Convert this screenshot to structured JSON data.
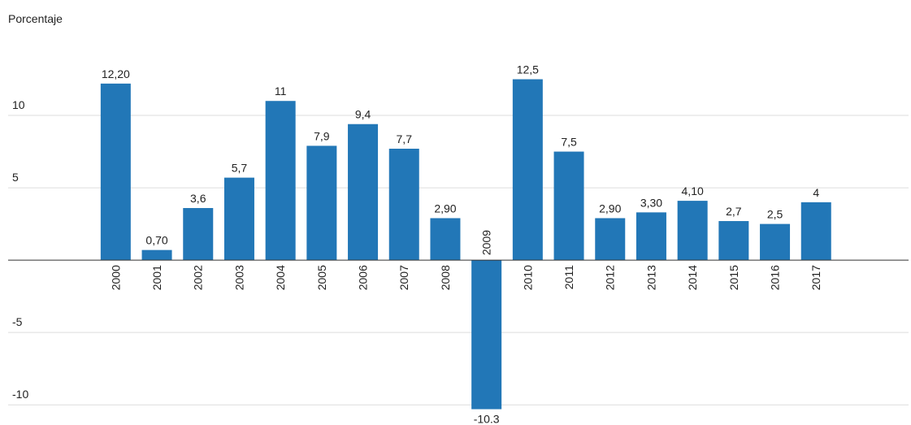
{
  "chart_data": {
    "type": "bar",
    "y_label": "Porcentaje",
    "categories": [
      "2000",
      "2001",
      "2002",
      "2003",
      "2004",
      "2005",
      "2006",
      "2007",
      "2008",
      "2009",
      "2010",
      "2011",
      "2012",
      "2013",
      "2014",
      "2015",
      "2016",
      "2017"
    ],
    "values": [
      12.2,
      0.7,
      3.6,
      5.7,
      11,
      7.9,
      9.4,
      7.7,
      2.9,
      -10.3,
      12.5,
      7.5,
      2.9,
      3.3,
      4.1,
      2.7,
      2.5,
      4
    ],
    "value_labels": [
      "12,20",
      "0,70",
      "3,6",
      "5,7",
      "11",
      "7,9",
      "9,4",
      "7,7",
      "2,90",
      "-10.3",
      "12,5",
      "7,5",
      "2,90",
      "3,30",
      "4,10",
      "2,7",
      "2,5",
      "4"
    ],
    "color": "#2277b7",
    "ylim": [
      -11,
      15
    ],
    "yticks": [
      -10,
      -5,
      5,
      10
    ],
    "grid": true
  }
}
